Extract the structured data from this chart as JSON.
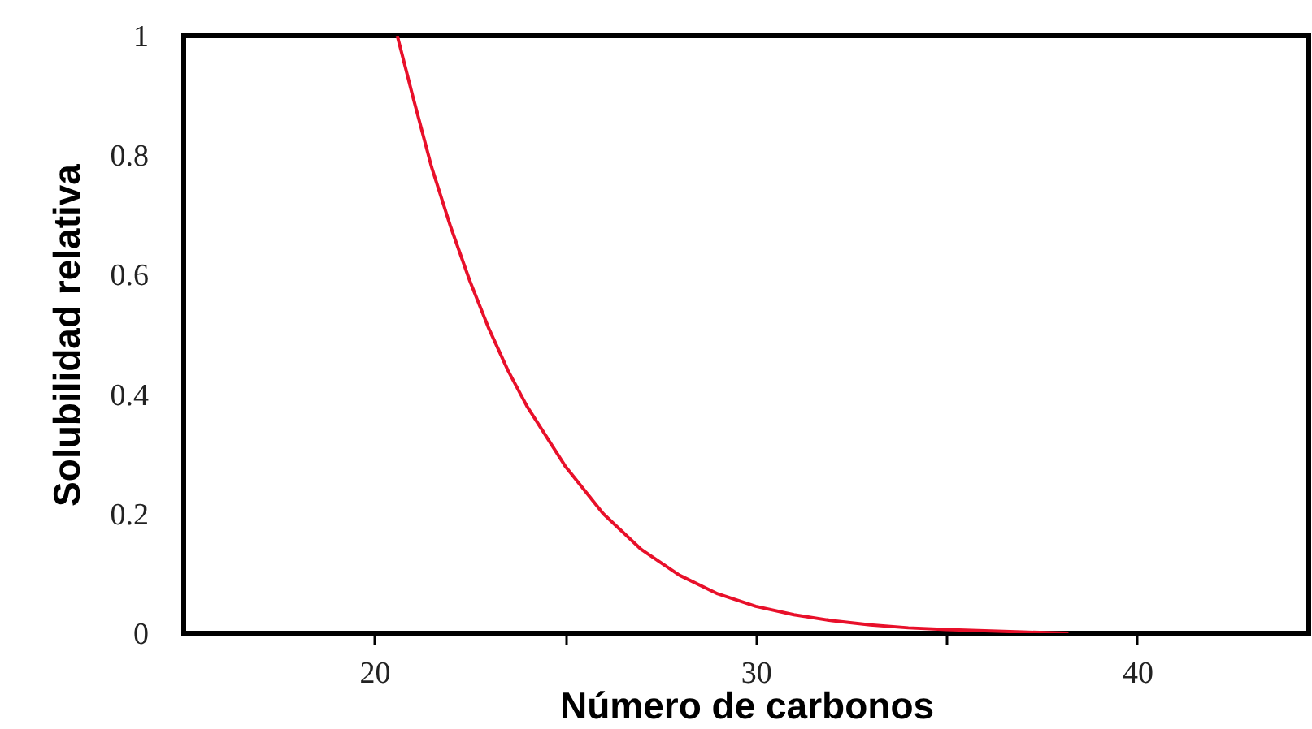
{
  "chart_data": {
    "type": "line",
    "xlabel": "Número de carbonos",
    "ylabel": "Solubilidad relativa",
    "x": [
      20.6,
      21,
      21.5,
      22,
      22.5,
      23,
      23.5,
      24,
      25,
      26,
      27,
      28,
      29,
      30,
      31,
      32,
      33,
      34,
      35,
      36,
      37,
      38.2
    ],
    "series": [
      {
        "color": "#e8102a",
        "values": [
          1,
          0.9,
          0.78,
          0.68,
          0.59,
          0.51,
          0.44,
          0.38,
          0.28,
          0.2,
          0.14,
          0.097,
          0.066,
          0.045,
          0.031,
          0.021,
          0.014,
          0.009,
          0.006,
          0.004,
          0.002,
          0
        ]
      }
    ],
    "xlim": [
      15,
      44.5
    ],
    "xticks": [
      20,
      {
        "value": 25,
        "label": null
      },
      30,
      {
        "value": 35,
        "label": null
      },
      40
    ],
    "ylim": [
      0,
      1
    ],
    "yticks": [
      0,
      0.2,
      0.4,
      0.6,
      0.8,
      1
    ],
    "grid": false,
    "marker": "none",
    "line_style": "solid"
  }
}
